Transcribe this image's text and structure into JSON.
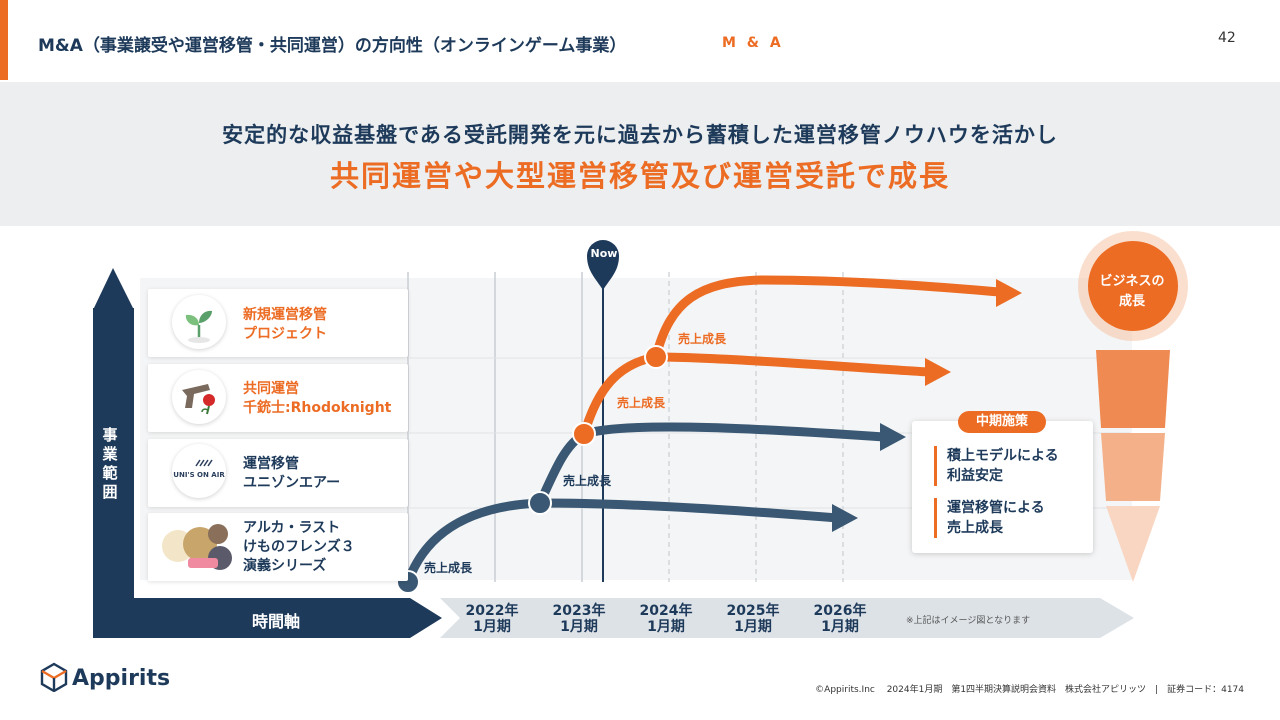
{
  "header": {
    "title": "M&A（事業譲受や運営移管・共同運営）の方向性（オンラインゲーム事業）",
    "tag": "M & A",
    "page_number": "42"
  },
  "banner": {
    "line1": "安定的な収益基盤である受託開発を元に過去から蓄積した運営移管ノウハウを活かし",
    "line2": "共同運営や大型運営移管及び運営受託で成長"
  },
  "axes": {
    "vertical_label": "事業範囲",
    "horizontal_label": "時間軸",
    "years": [
      {
        "year": "2022年",
        "period": "1月期"
      },
      {
        "year": "2023年",
        "period": "1月期"
      },
      {
        "year": "2024年",
        "period": "1月期"
      },
      {
        "year": "2025年",
        "period": "1月期"
      },
      {
        "year": "2026年",
        "period": "1月期"
      }
    ],
    "note": "※上記はイメージ図となります"
  },
  "rows": [
    {
      "line1": "新規運営移管",
      "line2": "プロジェクト",
      "line3": "",
      "color": "#ec6c24"
    },
    {
      "line1": "共同運営",
      "line2": "千銃士:Rhodoknight",
      "line3": "",
      "color": "#ec6c24"
    },
    {
      "line1": "運営移管",
      "line2": "ユニゾンエアー",
      "line3": "",
      "color": "#1e3a5a",
      "logo_text": "UNI'S ON AIR"
    },
    {
      "line1": "アルカ・ラスト",
      "line2": "けものフレンズ３",
      "line3": "演義シリーズ",
      "color": "#1e3a5a"
    }
  ],
  "now_label": "Now",
  "growth_labels": {
    "g1": "売上成長",
    "g2": "売上成長",
    "g3": "売上成長",
    "g4": "売上成長"
  },
  "measures": {
    "title": "中期施策",
    "item1_line1": "積上モデルによる",
    "item1_line2": "利益安定",
    "item2_line1": "運営移管による",
    "item2_line2": "売上成長"
  },
  "business_growth": {
    "line1": "ビジネスの",
    "line2": "成長"
  },
  "logo": {
    "name": "Appirits"
  },
  "footer": "©Appirits.Inc　 2024年1月期　第1四半期決算説明会資料　株式会社アピリッツ　|　証券コード：4174",
  "colors": {
    "accent": "#ec6c24",
    "navy": "#1e3a5a"
  }
}
